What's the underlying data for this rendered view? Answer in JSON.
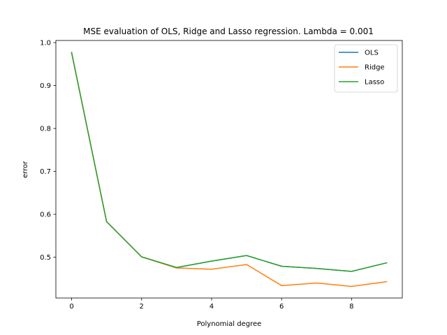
{
  "chart_data": {
    "type": "line",
    "title": "MSE evaluation of OLS, Ridge and Lasso regression. Lambda = 0.001",
    "xlabel": "Polynomial degree",
    "ylabel": "error",
    "x": [
      0,
      1,
      2,
      3,
      4,
      5,
      6,
      7,
      8,
      9
    ],
    "xlim": [
      -0.45,
      9.45
    ],
    "ylim": [
      0.405,
      1.005
    ],
    "xticks": [
      0,
      2,
      4,
      6,
      8
    ],
    "yticks": [
      0.5,
      0.6,
      0.7,
      0.8,
      0.9,
      1.0
    ],
    "xtick_labels": [
      "0",
      "2",
      "4",
      "6",
      "8"
    ],
    "ytick_labels": [
      "0.5",
      "0.6",
      "0.7",
      "0.8",
      "0.9",
      "1.0"
    ],
    "grid": false,
    "legend_position": "top-right",
    "series": [
      {
        "name": "OLS",
        "color": "#1f77b4",
        "values": [
          0.977,
          0.583,
          0.501,
          0.476,
          0.491,
          0.504,
          0.479,
          0.474,
          0.467,
          0.487
        ]
      },
      {
        "name": "Ridge",
        "color": "#ff7f0e",
        "values": [
          0.977,
          0.583,
          0.501,
          0.475,
          0.472,
          0.483,
          0.434,
          0.44,
          0.432,
          0.443
        ]
      },
      {
        "name": "Lasso",
        "color": "#2ca02c",
        "values": [
          0.977,
          0.583,
          0.501,
          0.476,
          0.491,
          0.504,
          0.479,
          0.474,
          0.467,
          0.487
        ]
      }
    ]
  }
}
